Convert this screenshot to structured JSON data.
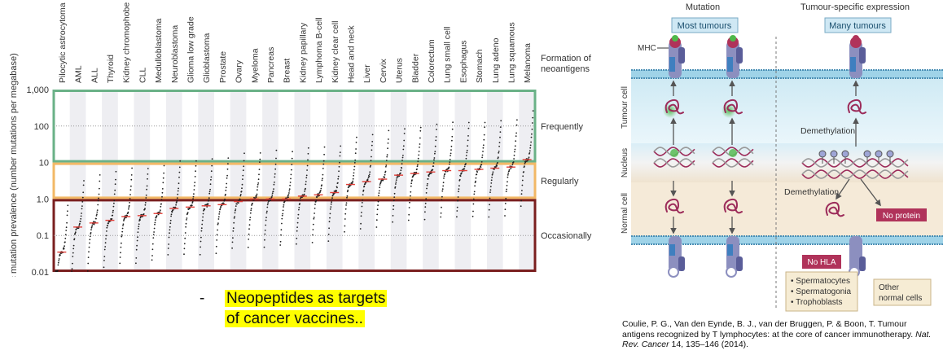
{
  "chart_data": {
    "type": "scatter",
    "ylabel": "Somatic mutation prevalence (number mutations per megabase)",
    "yscale": "log",
    "ylim": [
      0.01,
      1000
    ],
    "yticks": [
      "0.01",
      "0.1",
      "1.0",
      "10",
      "100",
      "1,000"
    ],
    "categories": [
      "Pilocytic astrocytoma",
      "AML",
      "ALL",
      "Thyroid",
      "Kidney chromophobe",
      "CLL",
      "Medulloblastoma",
      "Neuroblastoma",
      "Glioma low grade",
      "Glioblastoma",
      "Prostate",
      "Ovary",
      "Myeloma",
      "Pancreas",
      "Breast",
      "Kidney papillary",
      "Lymphoma B-cell",
      "Kidney clear cell",
      "Head and neck",
      "Liver",
      "Cervix",
      "Uterus",
      "Bladder",
      "Colorectum",
      "Lung small cell",
      "Esophagus",
      "Stomach",
      "Lung adeno",
      "Lung squamous",
      "Melanoma"
    ],
    "medians": [
      0.035,
      0.17,
      0.22,
      0.26,
      0.33,
      0.35,
      0.4,
      0.55,
      0.6,
      0.65,
      0.7,
      0.85,
      1.0,
      1.0,
      1.0,
      1.2,
      1.3,
      1.5,
      2.5,
      3.0,
      3.5,
      4.5,
      5.0,
      5.5,
      6.0,
      6.0,
      6.5,
      7.0,
      7.5,
      12
    ],
    "bands": [
      {
        "label": "Frequently",
        "range": [
          10,
          1000
        ],
        "color": "#6ab187"
      },
      {
        "label": "Regularly",
        "range": [
          1,
          10
        ],
        "color": "#f2b866"
      },
      {
        "label": "Occasionally",
        "range": [
          0.01,
          1
        ],
        "color": "#7a1f1f"
      }
    ],
    "band_header": "Formation of neoantigens",
    "median_color": "#e0403a",
    "point_color": "#222222"
  },
  "bullet": {
    "marker": "-",
    "line1": "Neopeptides as targets",
    "line2": "of cancer vaccines.."
  },
  "diagram": {
    "header_mutation": "Mutation",
    "header_tse": "Tumour-specific expression",
    "box_most": "Most tumours",
    "box_many": "Many tumours",
    "label_mhc": "MHC",
    "label_tumour_cell": "Tumour cell",
    "label_nucleus": "Nucleus",
    "label_normal_cell": "Normal cell",
    "label_demethylation_upper": "Demethylation",
    "label_demethylation_lower": "Demethylation",
    "box_no_protein": "No protein",
    "box_no_hla": "No HLA",
    "germline_list": [
      "Spermatocytes",
      "Spermatogonia",
      "Trophoblasts"
    ],
    "other_normal": [
      "Other",
      "normal cells"
    ]
  },
  "citation": {
    "authors": "Coulie, P. G., Van den Eynde, B. J., van der Bruggen, P. & Boon, T.",
    "title": "Tumour antigens recognized by T lymphocytes: at the core of cancer immunotherapy.",
    "journal": "Nat. Rev. Cancer",
    "volume": "14, 135–146 (2014)."
  }
}
